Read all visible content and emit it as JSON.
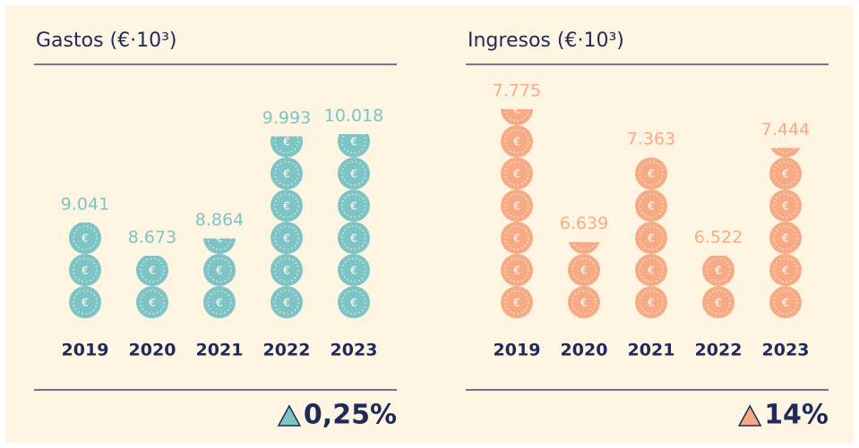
{
  "coin_symbol": "€",
  "chart_data": [
    {
      "type": "pictogram",
      "title": "Gastos (€·10³)",
      "color": "#7fc4c5",
      "categories": [
        "2019",
        "2020",
        "2021",
        "2022",
        "2023"
      ],
      "values": [
        9041,
        8673,
        8864,
        9993,
        10018
      ],
      "value_labels": [
        "9.041",
        "8.673",
        "8.864",
        "9.993",
        "10.018"
      ],
      "change": "0,25%"
    },
    {
      "type": "pictogram",
      "title": "Ingresos (€·10³)",
      "color": "#f7ab85",
      "categories": [
        "2019",
        "2020",
        "2021",
        "2022",
        "2023"
      ],
      "values": [
        7775,
        6639,
        7363,
        6522,
        7444
      ],
      "value_labels": [
        "7.775",
        "6.639",
        "7.363",
        "6.522",
        "7.444"
      ],
      "change": "14%"
    }
  ]
}
